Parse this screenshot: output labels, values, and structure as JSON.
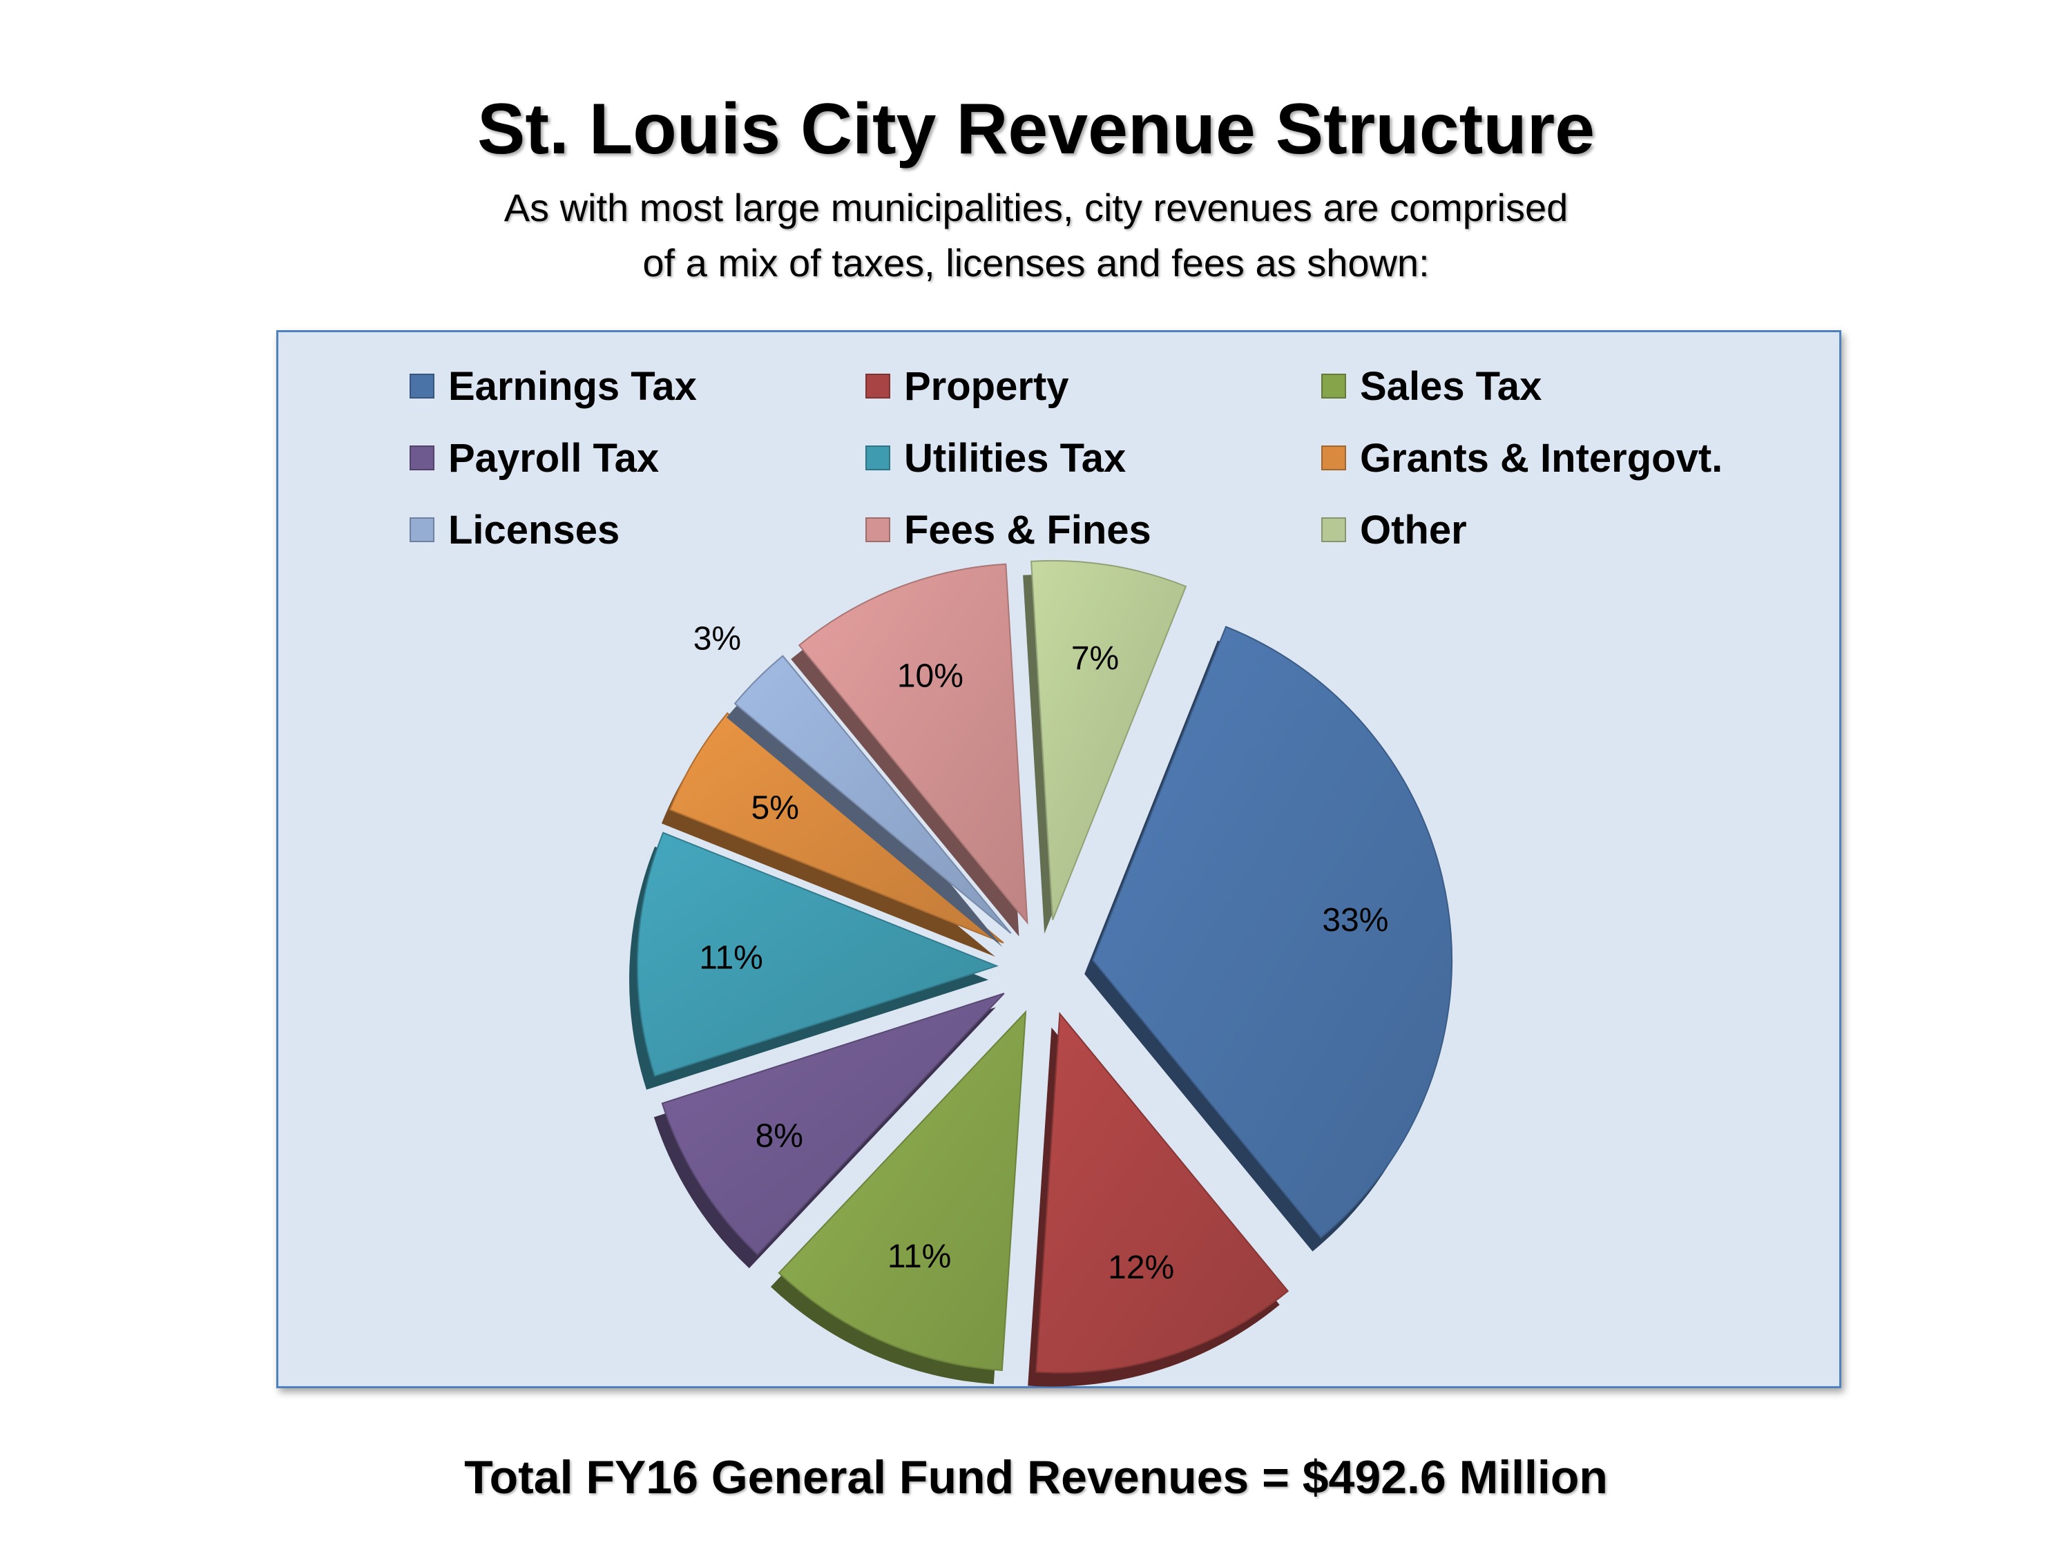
{
  "header": {
    "title": "St. Louis City Revenue Structure",
    "subtitle_line1": "As with most large municipalities, city revenues are comprised",
    "subtitle_line2": "of a mix of taxes, licenses and fees as shown:"
  },
  "footer": {
    "total": "Total FY16 General Fund Revenues = $492.6 Million"
  },
  "chart_data": {
    "type": "pie",
    "style": "3d-exploded",
    "legend_position": "top",
    "categories": [
      "Earnings Tax",
      "Property",
      "Sales Tax",
      "Payroll Tax",
      "Utilities Tax",
      "Grants & Intergovt.",
      "Licenses",
      "Fees & Fines",
      "Other"
    ],
    "values": [
      33,
      12,
      11,
      8,
      11,
      5,
      3,
      10,
      7
    ],
    "labels": [
      "33%",
      "12%",
      "11%",
      "8%",
      "11%",
      "5%",
      "3%",
      "10%",
      "7%"
    ],
    "colors": [
      "#4a73a8",
      "#a94444",
      "#86a44a",
      "#6f5a8f",
      "#3f9bb0",
      "#d98a3e",
      "#95add3",
      "#d39392",
      "#b6c994"
    ]
  }
}
